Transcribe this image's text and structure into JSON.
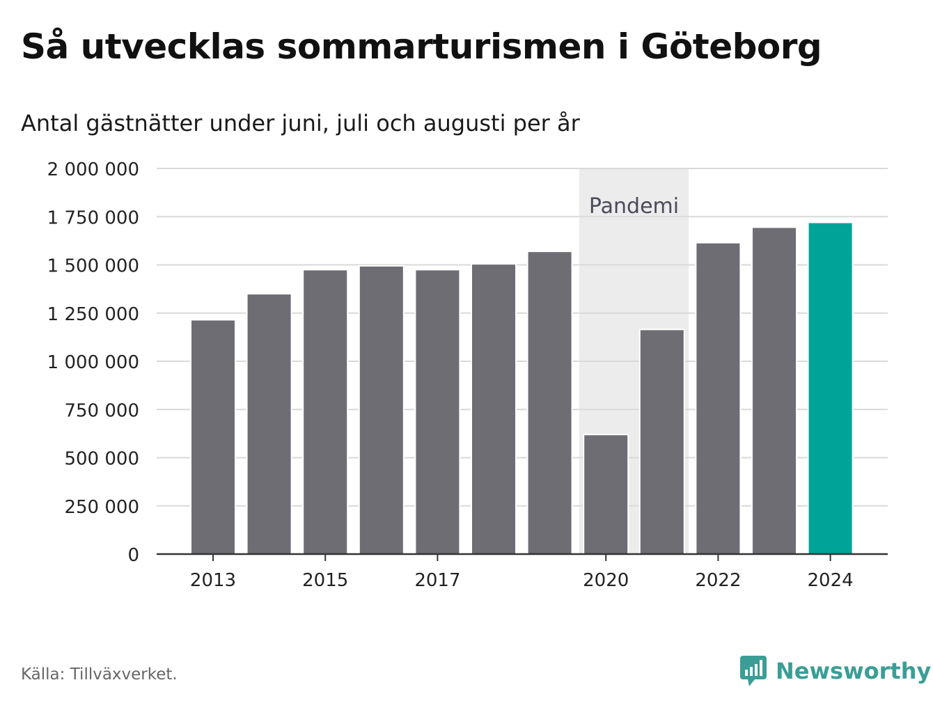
{
  "title": "Så utvecklas sommarturismen i Göteborg",
  "subtitle": "Antal gästnätter under juni, juli och augusti per år",
  "source": "Källa: Tillväxverket.",
  "brand": "Newsworthy",
  "colors": {
    "bar": "#6e6d73",
    "highlight": "#00a398",
    "pandemic_band": "#ececec",
    "grid": "#d9d9d9",
    "axis": "#333333",
    "brand": "#3a9e96"
  },
  "chart_data": {
    "type": "bar",
    "categories": [
      "2013",
      "2014",
      "2015",
      "2016",
      "2017",
      "2018",
      "2019",
      "2020",
      "2021",
      "2022",
      "2023",
      "2024"
    ],
    "values": [
      1215000,
      1350000,
      1475000,
      1495000,
      1475000,
      1505000,
      1570000,
      620000,
      1165000,
      1615000,
      1695000,
      1720000
    ],
    "highlight_category": "2024",
    "ylim": [
      0,
      2000000
    ],
    "yticks": [
      0,
      250000,
      500000,
      750000,
      1000000,
      1250000,
      1500000,
      1750000,
      2000000
    ],
    "ytick_labels": [
      "0",
      "250 000",
      "500 000",
      "750 000",
      "1 000 000",
      "1 250 000",
      "1 500 000",
      "1 750 000",
      "2 000 000"
    ],
    "xtick_labels": [
      "2013",
      "2015",
      "2017",
      "2020",
      "2022",
      "2024"
    ],
    "grid": true,
    "annotation": {
      "label": "Pandemi",
      "from": "2020",
      "to": "2021"
    }
  }
}
